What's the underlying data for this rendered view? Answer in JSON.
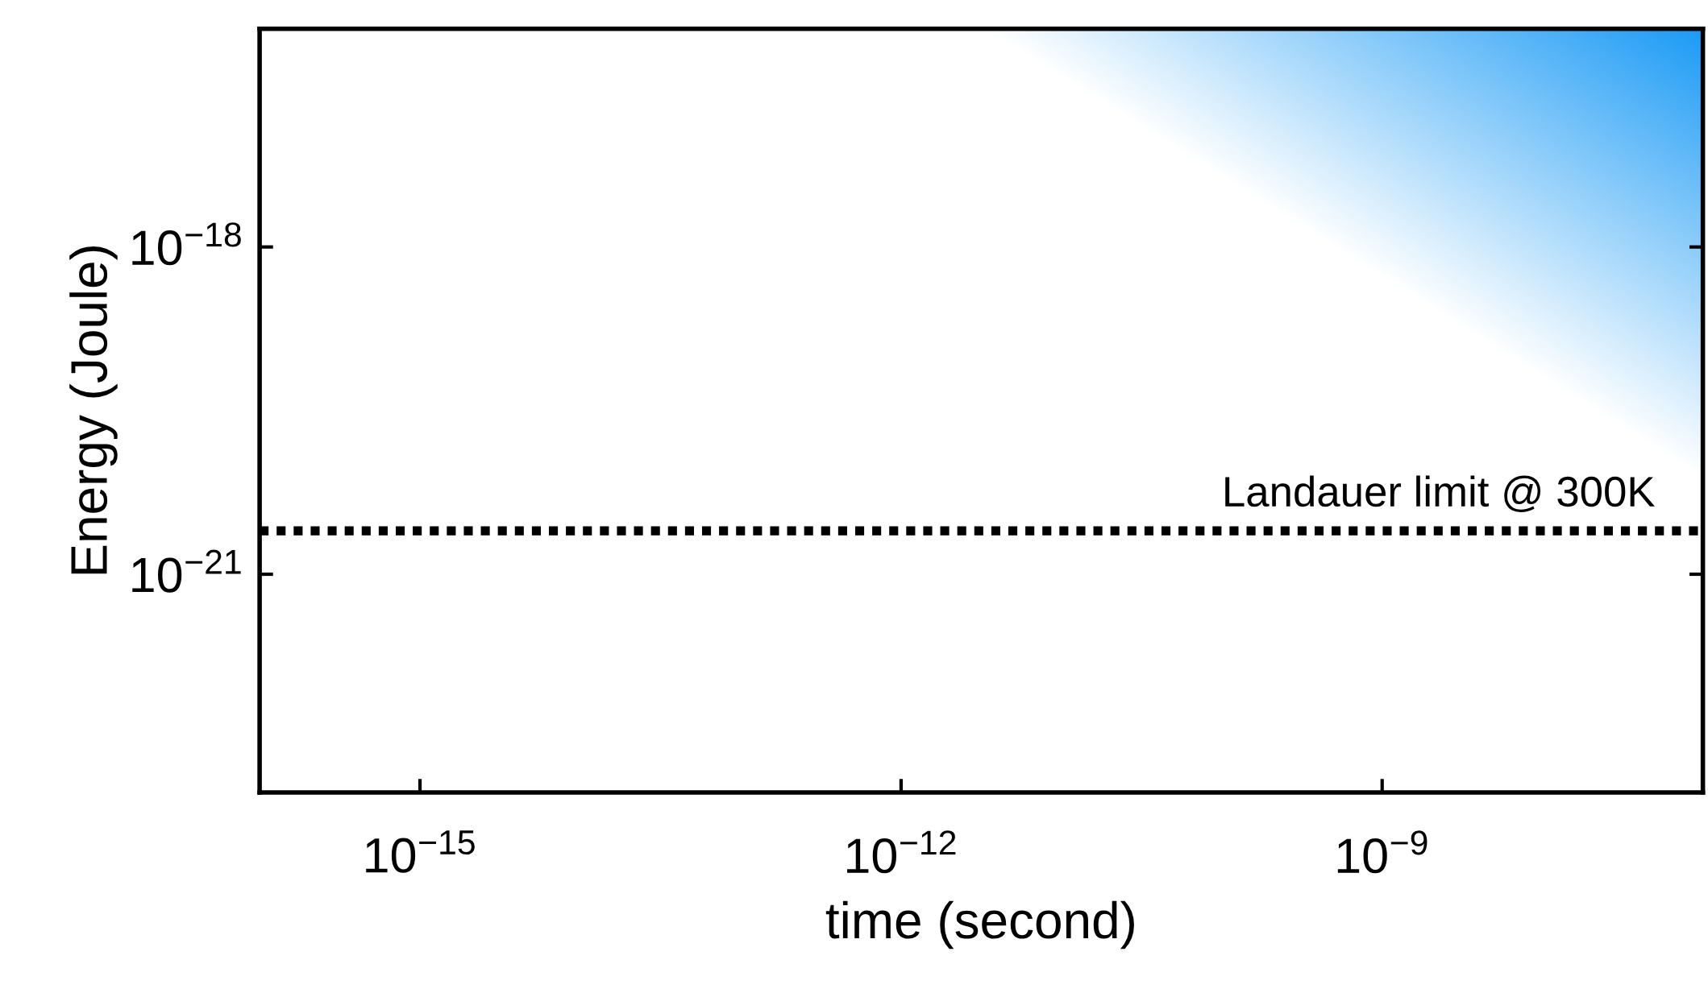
{
  "chart_data": {
    "type": "line",
    "xlabel": "time (second)",
    "ylabel": "Energy (Joule)",
    "log": "xy",
    "grid": false,
    "xlim": [
      1e-16,
      1e-07
    ],
    "ylim": [
      1e-23,
      1e-16
    ],
    "xticks": [
      {
        "value": 1e-15,
        "label": "10$^{−15}$"
      },
      {
        "value": 1e-12,
        "label": "10$^{−12}$"
      },
      {
        "value": 1e-09,
        "label": "10$^{−9}$"
      }
    ],
    "yticks": [
      {
        "value": 1e-21,
        "label": "10$^{−21}$"
      },
      {
        "value": 1e-18,
        "label": "10$^{−18}$"
      }
    ],
    "ref_lines": [
      {
        "axis": "y",
        "value": 2.5e-21,
        "label": "Landauer limit @ 300K",
        "color": "#000000",
        "line_style": "dotted"
      }
    ]
  }
}
